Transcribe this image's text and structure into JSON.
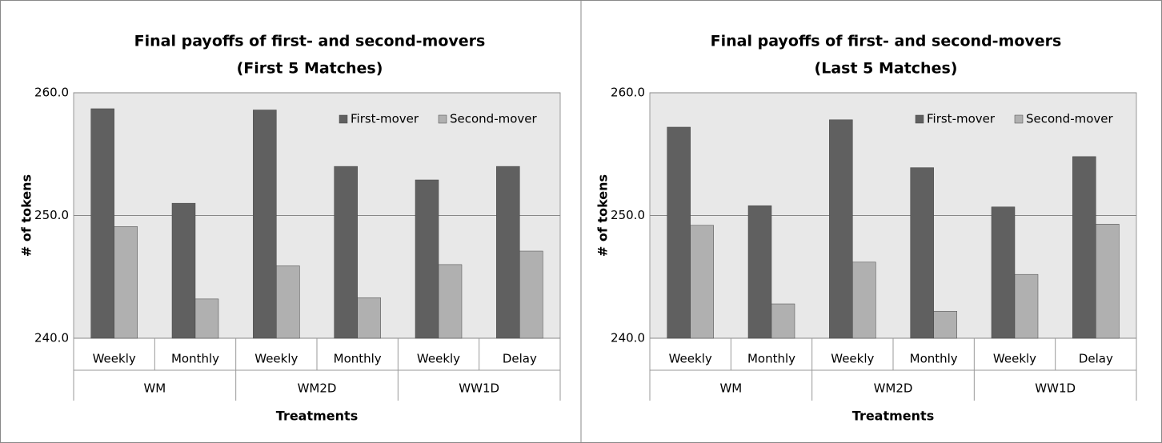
{
  "chart_data": [
    {
      "type": "bar",
      "title": "Final payoffs of first- and second-movers",
      "subtitle": "(First 5 Matches)",
      "ylabel": "# of tokens",
      "xlabel": "Treatments",
      "categories": [
        "Weekly",
        "Monthly",
        "Weekly",
        "Monthly",
        "Weekly",
        "Delay"
      ],
      "groups": [
        "WM",
        "WM2D",
        "WW1D"
      ],
      "series": [
        {
          "name": "First-mover",
          "color": "#606060",
          "values": [
            258.7,
            251.0,
            258.6,
            254.0,
            252.9,
            254.0
          ]
        },
        {
          "name": "Second-mover",
          "color": "#b0b0b0",
          "values": [
            249.1,
            243.2,
            245.9,
            243.3,
            246.0,
            247.1
          ]
        }
      ],
      "ylim": [
        240,
        260
      ],
      "yticks": [
        {
          "value": 240,
          "label": "240.0"
        },
        {
          "value": 250,
          "label": "250.0"
        },
        {
          "value": 260,
          "label": "260.0"
        }
      ],
      "grid": true,
      "legend": "upper right"
    },
    {
      "type": "bar",
      "title": "Final payoffs of first- and second-movers",
      "subtitle": "(Last 5 Matches)",
      "ylabel": "# of tokens",
      "xlabel": "Treatments",
      "categories": [
        "Weekly",
        "Monthly",
        "Weekly",
        "Monthly",
        "Weekly",
        "Delay"
      ],
      "groups": [
        "WM",
        "WM2D",
        "WW1D"
      ],
      "series": [
        {
          "name": "First-mover",
          "color": "#606060",
          "values": [
            257.2,
            250.8,
            257.8,
            253.9,
            250.7,
            254.8
          ]
        },
        {
          "name": "Second-mover",
          "color": "#b0b0b0",
          "values": [
            249.2,
            242.8,
            246.2,
            242.2,
            245.2,
            249.3
          ]
        }
      ],
      "ylim": [
        240,
        260
      ],
      "yticks": [
        {
          "value": 240,
          "label": "240.0"
        },
        {
          "value": 250,
          "label": "250.0"
        },
        {
          "value": 260,
          "label": "260.0"
        }
      ],
      "grid": true,
      "legend": "upper right"
    }
  ]
}
